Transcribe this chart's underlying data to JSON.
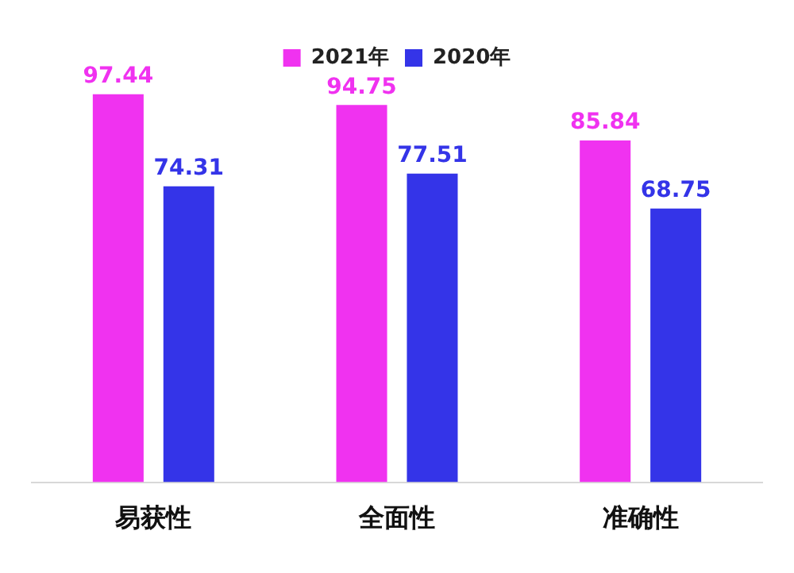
{
  "chart_data": {
    "type": "bar",
    "categories": [
      "易获性",
      "全面性",
      "准确性"
    ],
    "series": [
      {
        "name": "2021年",
        "color": "#f032f0",
        "values": [
          97.44,
          94.75,
          85.84
        ]
      },
      {
        "name": "2020年",
        "color": "#3434e8",
        "values": [
          74.31,
          77.51,
          68.75
        ]
      }
    ],
    "tick_labels": "x",
    "data_labels": true,
    "legend": "top",
    "grid": false
  }
}
